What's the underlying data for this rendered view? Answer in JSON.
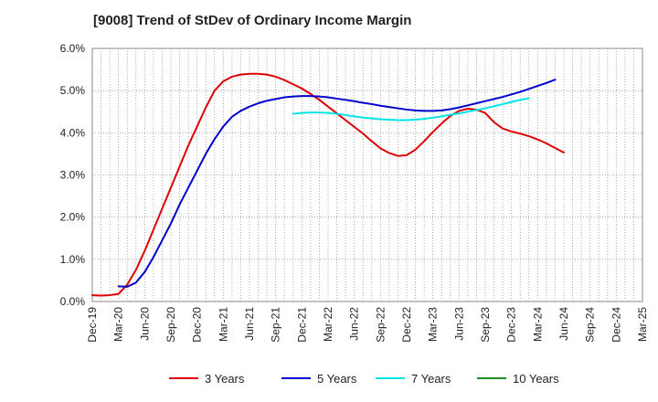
{
  "chart_data": {
    "type": "line",
    "title": "[9008]  Trend of StDev of Ordinary Income Margin",
    "xlabel": "",
    "ylabel": "",
    "x_ticks": [
      "Dec-19",
      "Mar-20",
      "Jun-20",
      "Sep-20",
      "Dec-20",
      "Mar-21",
      "Jun-21",
      "Sep-21",
      "Dec-21",
      "Mar-22",
      "Jun-22",
      "Sep-22",
      "Dec-22",
      "Mar-23",
      "Jun-23",
      "Sep-23",
      "Dec-23",
      "Mar-24",
      "Jun-24",
      "Sep-24",
      "Dec-24",
      "Mar-25"
    ],
    "y_ticks": [
      "0.0%",
      "1.0%",
      "2.0%",
      "3.0%",
      "4.0%",
      "5.0%",
      "6.0%"
    ],
    "ylim": [
      0,
      6
    ],
    "grid": true,
    "legend_position": "bottom",
    "series": [
      {
        "name": "3 Years",
        "color": "#dd0000",
        "start_index": 0,
        "values": [
          0.15,
          0.14,
          0.15,
          0.18,
          0.4,
          0.75,
          1.2,
          1.7,
          2.2,
          2.7,
          3.2,
          3.7,
          4.15,
          4.6,
          5.0,
          5.22,
          5.33,
          5.38,
          5.4,
          5.4,
          5.38,
          5.33,
          5.25,
          5.15,
          5.05,
          4.92,
          4.78,
          4.62,
          4.46,
          4.3,
          4.14,
          3.98,
          3.8,
          3.63,
          3.52,
          3.45,
          3.47,
          3.6,
          3.8,
          4.02,
          4.22,
          4.4,
          4.52,
          4.57,
          4.55,
          4.47,
          4.25,
          4.1,
          4.03,
          3.98,
          3.92,
          3.84,
          3.75,
          3.64,
          3.53
        ]
      },
      {
        "name": "5 Years",
        "color": "#0000cc",
        "start_index": 3,
        "values": [
          0.36,
          0.35,
          0.45,
          0.7,
          1.05,
          1.45,
          1.85,
          2.3,
          2.7,
          3.1,
          3.5,
          3.85,
          4.15,
          4.38,
          4.52,
          4.62,
          4.7,
          4.76,
          4.8,
          4.84,
          4.86,
          4.87,
          4.87,
          4.86,
          4.84,
          4.81,
          4.78,
          4.75,
          4.71,
          4.68,
          4.64,
          4.61,
          4.58,
          4.55,
          4.53,
          4.52,
          4.52,
          4.53,
          4.56,
          4.6,
          4.65,
          4.7,
          4.75,
          4.8,
          4.85,
          4.91,
          4.97,
          5.04,
          5.11,
          5.18,
          5.26
        ]
      },
      {
        "name": "7 Years",
        "color": "#00e5e5",
        "start_index": 23,
        "values": [
          4.45,
          4.47,
          4.48,
          4.48,
          4.47,
          4.45,
          4.42,
          4.39,
          4.36,
          4.34,
          4.32,
          4.31,
          4.3,
          4.3,
          4.31,
          4.33,
          4.36,
          4.39,
          4.43,
          4.46,
          4.5,
          4.54,
          4.58,
          4.63,
          4.68,
          4.73,
          4.78,
          4.82
        ]
      },
      {
        "name": "10 Years",
        "color": "#228b22",
        "start_index": 0,
        "values": []
      }
    ]
  }
}
